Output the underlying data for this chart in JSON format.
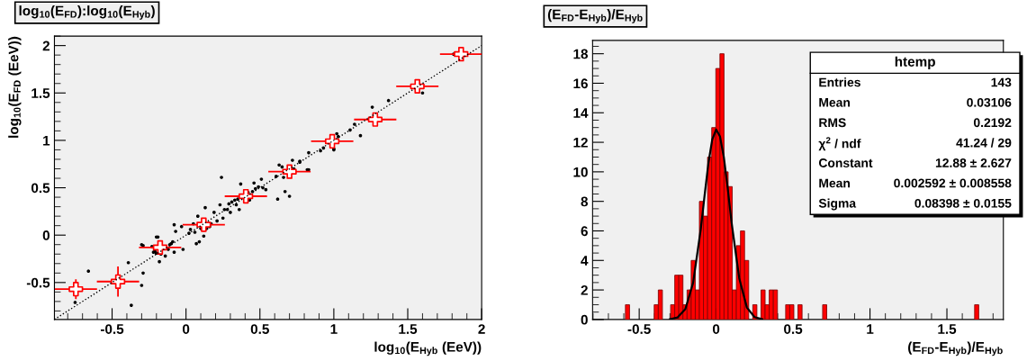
{
  "chart_data": [
    {
      "type": "scatter",
      "title": "log$_{10}$(E$_{FD}$):log$_{10}$(E$_{Hyb}$)",
      "xlabel": "log$_{10}$(E$_{Hyb}$ (EeV))",
      "ylabel": "log$_{10}$(E$_{FD}$ (EeV))",
      "xlim": [
        -0.89,
        2.0
      ],
      "ylim": [
        -0.89,
        2.1
      ],
      "xticks": [
        -0.5,
        0,
        0.5,
        1,
        1.5,
        2
      ],
      "yticks": [
        -0.5,
        0,
        0.5,
        1,
        1.5,
        2
      ],
      "series": [
        {
          "type": "scatter",
          "color": "#000000",
          "marker": "circle",
          "x": [
            -0.66,
            -0.39,
            -0.29,
            -0.3,
            -0.37,
            -0.75,
            -0.3,
            -0.29,
            -0.23,
            -0.22,
            -0.21,
            -0.2,
            -0.18,
            -0.19,
            -0.2,
            -0.17,
            -0.14,
            -0.12,
            -0.11,
            -0.1,
            -0.09,
            -0.08,
            -0.07,
            -0.08,
            -0.02,
            -0.03,
            0.02,
            0.03,
            0.05,
            0.06,
            0.07,
            0.08,
            0.09,
            0.1,
            0.12,
            0.13,
            0.14,
            0.16,
            0.17,
            0.19,
            0.21,
            0.23,
            0.24,
            0.25,
            0.26,
            0.28,
            0.29,
            0.3,
            0.31,
            0.33,
            0.34,
            0.35,
            0.36,
            0.37,
            0.42,
            0.43,
            0.45,
            0.46,
            0.47,
            0.49,
            0.51,
            0.52,
            0.54,
            0.61,
            0.62,
            0.63,
            0.65,
            0.66,
            0.67,
            0.7,
            0.72,
            0.73,
            0.77,
            0.77,
            0.82,
            0.83,
            0.83,
            0.91,
            0.93,
            1.0,
            1.03,
            1.02,
            1.0,
            1.11,
            1.14,
            1.18,
            1.26,
            1.37,
            1.6,
            1.81
          ],
          "values": [
            -0.38,
            -0.29,
            -0.4,
            -0.53,
            -0.74,
            -0.71,
            -0.1,
            -0.11,
            -0.12,
            -0.18,
            -0.17,
            -0.19,
            -0.28,
            -0.02,
            -0.02,
            -0.2,
            -0.22,
            -0.15,
            -0.1,
            -0.09,
            -0.07,
            -0.18,
            0.04,
            0.11,
            -0.15,
            0.09,
            0.02,
            0.06,
            0.12,
            0.03,
            -0.09,
            0.2,
            -0.07,
            0.07,
            -0.01,
            0.29,
            0.07,
            0.09,
            0.12,
            0.24,
            0.15,
            0.32,
            0.61,
            0.18,
            0.27,
            0.27,
            0.33,
            0.24,
            0.35,
            0.37,
            0.32,
            0.38,
            0.27,
            0.54,
            0.45,
            0.37,
            0.46,
            0.55,
            0.49,
            0.51,
            0.59,
            0.5,
            0.48,
            0.62,
            0.38,
            0.74,
            0.72,
            0.61,
            0.46,
            0.41,
            0.79,
            0.7,
            0.77,
            0.78,
            0.69,
            0.69,
            0.87,
            0.89,
            0.92,
            0.9,
            1.04,
            1.07,
            0.91,
            1.11,
            1.17,
            1.05,
            1.35,
            1.42,
            1.5,
            1.91
          ]
        },
        {
          "type": "scatter",
          "color": "#ff0000",
          "marker": "cross",
          "x": [
            -0.745,
            -0.46,
            -0.175,
            0.12,
            0.405,
            0.7,
            0.989,
            1.28,
            1.565,
            1.861
          ],
          "values": [
            -0.57,
            -0.49,
            -0.13,
            0.11,
            0.41,
            0.67,
            0.99,
            1.22,
            1.57,
            1.91
          ],
          "errors": [
            0.105,
            0.16,
            null,
            null,
            null,
            null,
            null,
            null,
            null,
            null
          ],
          "xerrors": [
            0.143,
            0.143,
            0.143,
            0.143,
            0.143,
            0.143,
            0.143,
            0.143,
            0.143,
            0.143
          ]
        },
        {
          "type": "line",
          "color": "#000000",
          "line_style": "dotted",
          "x": [
            -0.89,
            2.0
          ],
          "values": [
            -0.89,
            2.0
          ]
        }
      ]
    },
    {
      "type": "histogram",
      "title": "(E$_{FD}$-E$_{Hyb}$)/E$_{Hyb}$",
      "xlabel": "(E$_{FD}$-E$_{Hyb}$)/E$_{Hyb}$",
      "xlim": [
        -0.803,
        1.867
      ],
      "ylim": [
        0,
        18.9
      ],
      "xticks": [
        -0.5,
        0,
        0.5,
        1,
        1.5
      ],
      "yticks": [
        0,
        2,
        4,
        6,
        8,
        10,
        12,
        14,
        16,
        18
      ],
      "series": [
        {
          "type": "histogram",
          "color": "#ff0000",
          "bins": [
            -0.803,
            -0.7763,
            -0.7496,
            -0.7229,
            -0.6962,
            -0.6695,
            -0.6428,
            -0.6161,
            -0.5894,
            -0.5627,
            -0.536,
            -0.5093,
            -0.4826,
            -0.4559,
            -0.4292,
            -0.4025,
            -0.3758,
            -0.3491,
            -0.3224,
            -0.2957,
            -0.269,
            -0.2423,
            -0.2156,
            -0.1889,
            -0.1622,
            -0.1355,
            -0.1088,
            -0.0821,
            -0.0554,
            -0.0287,
            -0.002,
            0.0247,
            0.0514,
            0.0781,
            0.1048,
            0.1315,
            0.1582,
            0.1849,
            0.2116,
            0.2383,
            0.265,
            0.2917,
            0.3184,
            0.3451,
            0.3718,
            0.3985,
            0.4252,
            0.4519,
            0.4786,
            0.5053,
            0.532,
            0.5587,
            0.5854,
            0.6121,
            0.6388,
            0.6655,
            0.6922,
            0.7189,
            0.7456,
            0.7723,
            0.799,
            0.8257,
            0.8524,
            0.8791,
            0.9058,
            0.9325,
            0.9592,
            0.9859,
            1.0126,
            1.0393,
            1.066,
            1.0927,
            1.1194,
            1.1461,
            1.1728,
            1.1995,
            1.2262,
            1.2529,
            1.2796,
            1.3063,
            1.333,
            1.3597,
            1.3864,
            1.4131,
            1.4398,
            1.4665,
            1.4932,
            1.5199,
            1.5466,
            1.5733,
            1.6,
            1.6267,
            1.6534,
            1.6801,
            1.7068,
            1.7335,
            1.7602,
            1.7869,
            1.8136,
            1.8403,
            1.867
          ],
          "values": [
            0,
            0,
            0,
            0,
            0,
            0,
            0,
            0,
            1,
            0,
            0,
            0,
            0,
            0,
            0,
            1,
            2,
            0,
            0,
            1,
            3,
            3,
            1,
            2,
            4,
            2,
            8,
            7,
            11,
            13,
            17,
            18,
            10,
            9,
            2,
            5,
            6,
            4,
            0,
            1,
            0,
            2,
            1,
            2,
            2,
            0,
            0,
            1,
            1,
            0,
            1,
            0,
            0,
            0,
            0,
            0,
            1,
            0,
            0,
            0,
            0,
            0,
            0,
            0,
            0,
            0,
            0,
            0,
            0,
            0,
            0,
            0,
            0,
            0,
            0,
            0,
            0,
            0,
            0,
            0,
            0,
            0,
            0,
            0,
            0,
            0,
            0,
            0,
            0,
            0,
            0,
            0,
            0,
            1,
            0,
            0,
            0,
            0,
            0,
            0
          ]
        },
        {
          "type": "line",
          "color": "#000000",
          "line_style": "solid",
          "x": [
            -0.3,
            -0.25,
            -0.2,
            -0.15,
            -0.1,
            -0.075,
            -0.05,
            -0.025,
            0,
            0.025,
            0.05,
            0.075,
            0.1,
            0.15,
            0.2,
            0.25,
            0.3
          ],
          "values": [
            0.02,
            0.14,
            0.71,
            2.47,
            6.1,
            8.4,
            10.6,
            12.2,
            12.87,
            12.4,
            11.0,
            8.9,
            6.6,
            2.8,
            0.81,
            0.16,
            0.02
          ]
        }
      ],
      "annotations": [
        "htemp",
        "Entries",
        "143",
        "Mean",
        "0.03106",
        "RMS",
        "0.2192",
        "χ$^{2}$ / ndf",
        "41.24 / 29",
        "Constant",
        "12.88 ± 2.627",
        "Mean",
        "0.002592 ± 0.008558",
        "Sigma",
        "0.08398 ± 0.0155"
      ]
    }
  ]
}
